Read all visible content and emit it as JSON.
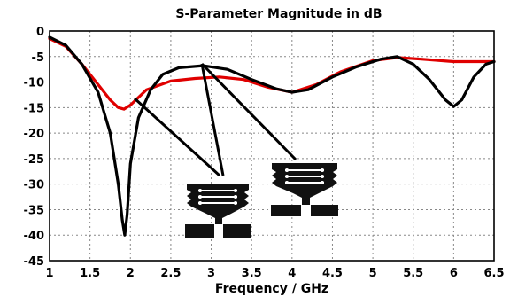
{
  "chart_data": {
    "type": "line",
    "title": "S-Parameter Magnitude in dB",
    "xlabel": "Frequency / GHz",
    "ylabel": "",
    "xlim": [
      1,
      6.5
    ],
    "ylim": [
      -45,
      0
    ],
    "grid": true,
    "x_ticks": [
      "1",
      "1.5",
      "2",
      "2.5",
      "3",
      "3.5",
      "4",
      "4.5",
      "5",
      "5.5",
      "6",
      "6.5"
    ],
    "y_ticks": [
      "0",
      "-5",
      "-10",
      "-15",
      "-20",
      "-25",
      "-30",
      "-35",
      "-40",
      "-45"
    ],
    "series": [
      {
        "color": "#e00000",
        "x": [
          1.0,
          1.2,
          1.4,
          1.6,
          1.75,
          1.85,
          1.92,
          2.0,
          2.2,
          2.5,
          2.8,
          3.1,
          3.4,
          3.7,
          4.0,
          4.3,
          4.6,
          5.0,
          5.3,
          5.6,
          6.0,
          6.3,
          6.5
        ],
        "y": [
          -1.5,
          -3.0,
          -6.5,
          -10.5,
          -13.5,
          -15.0,
          -15.3,
          -14.5,
          -11.5,
          -9.8,
          -9.3,
          -9.0,
          -9.5,
          -11.0,
          -12.0,
          -10.5,
          -8.0,
          -5.8,
          -5.2,
          -5.5,
          -6.0,
          -6.0,
          -6.0
        ]
      },
      {
        "color": "#000000",
        "x": [
          1.0,
          1.2,
          1.4,
          1.6,
          1.75,
          1.85,
          1.9,
          1.93,
          1.96,
          2.0,
          2.1,
          2.25,
          2.4,
          2.6,
          2.9,
          3.2,
          3.5,
          3.8,
          4.0,
          4.2,
          4.5,
          4.8,
          5.1,
          5.3,
          5.5,
          5.7,
          5.9,
          6.0,
          6.1,
          6.25,
          6.4,
          6.5
        ],
        "y": [
          -1.2,
          -2.8,
          -6.5,
          -12.0,
          -20.0,
          -30.0,
          -37.0,
          -40.0,
          -36.0,
          -26.0,
          -17.0,
          -11.5,
          -8.5,
          -7.2,
          -6.8,
          -7.5,
          -9.5,
          -11.3,
          -12.0,
          -11.5,
          -9.0,
          -7.0,
          -5.5,
          -5.0,
          -6.5,
          -9.5,
          -13.5,
          -14.8,
          -13.5,
          -9.0,
          -6.5,
          -6.0
        ]
      }
    ]
  }
}
